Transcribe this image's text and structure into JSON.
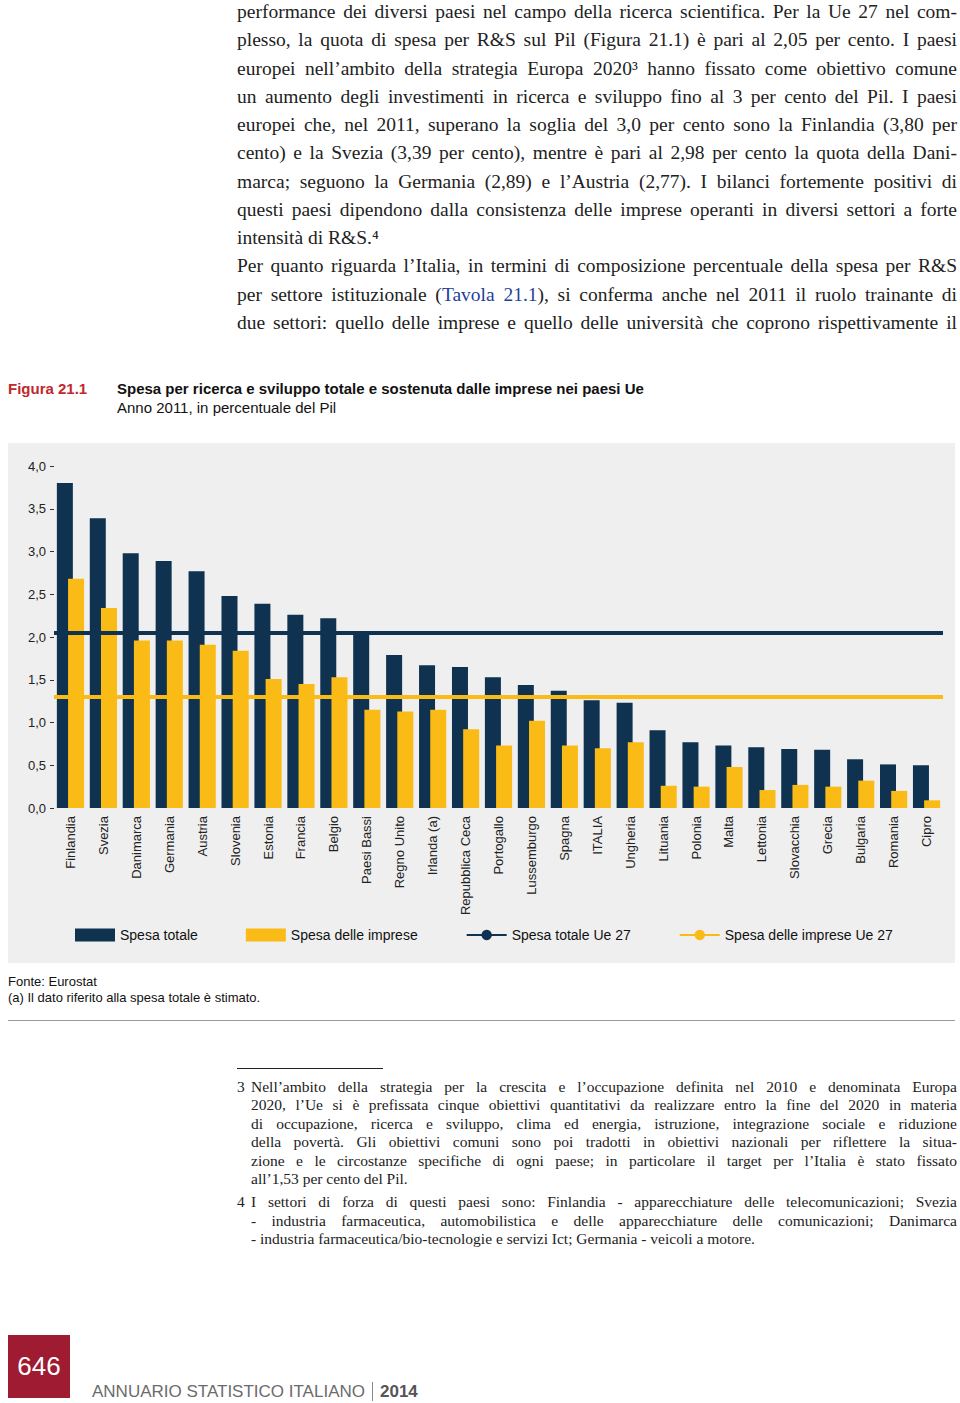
{
  "body": {
    "paragraphs": [
      {
        "lines": [
          "performance dei diversi paesi nel campo della ricerca scientifica. Per la Ue 27 nel com-",
          "plesso, la quota di spesa per R&S sul Pil (Figura 21.1) è pari al 2,05 per cento. I paesi",
          "europei nell’ambito della strategia Europa 2020³ hanno fissato come obiettivo comune",
          "un aumento degli investimenti in ricerca e sviluppo fino al 3 per cento del Pil. I paesi",
          "europei che, nel 2011, superano la soglia del 3,0 per cento sono la Finlandia (3,80 per",
          "cento) e la Svezia (3,39 per cento), mentre è pari al 2,98 per cento la quota della Dani-",
          "marca; seguono la Germania (2,89) e l’Austria (2,77). I bilanci fortemente positivi di",
          "questi paesi dipendono dalla consistenza delle imprese operanti in diversi settori a forte",
          "intensità di R&S.⁴"
        ],
        "continues": false
      },
      {
        "lines": [
          "Per quanto riguarda l’Italia, in termini di composizione percentuale della spesa per R&S",
          [
            {
              "text": "per settore istituzionale ("
            },
            {
              "text": "Tavola 21.1",
              "link": true
            },
            {
              "text": "), si conferma anche nel 2011 il ruolo trainante di"
            }
          ],
          "due settori: quello delle imprese e quello delle università che coprono rispettivamente il"
        ],
        "continues": true
      }
    ]
  },
  "chart_data": {
    "type": "bar",
    "figure_label": "Figura 21.1",
    "title": "Spesa per ricerca e sviluppo totale e sostenuta dalle imprese nei paesi Ue",
    "subtitle": "Anno 2011, in percentuale del Pil",
    "categories": [
      "Finlandia",
      "Svezia",
      "Danimarca",
      "Germania",
      "Austria",
      "Slovenia",
      "Estonia",
      "Francia",
      "Belgio",
      "Paesi Bassi",
      "Regno Unito",
      "Irlanda (a)",
      "Repubblica Ceca",
      "Portogallo",
      "Lussemburgo",
      "Spagna",
      "ITALIA",
      "Ungheria",
      "Lituania",
      "Polonia",
      "Malta",
      "Lettonia",
      "Slovacchia",
      "Grecia",
      "Bulgaria",
      "Romania",
      "Cipro"
    ],
    "series": [
      {
        "name": "Spesa totale",
        "color": "#0e324f",
        "values": [
          3.8,
          3.39,
          2.98,
          2.89,
          2.77,
          2.48,
          2.39,
          2.26,
          2.22,
          2.04,
          1.79,
          1.67,
          1.65,
          1.53,
          1.44,
          1.37,
          1.26,
          1.23,
          0.91,
          0.77,
          0.73,
          0.71,
          0.69,
          0.68,
          0.57,
          0.51,
          0.5
        ]
      },
      {
        "name": "Spesa delle imprese",
        "color": "#fbbb17",
        "values": [
          2.68,
          2.34,
          1.96,
          1.96,
          1.91,
          1.84,
          1.51,
          1.45,
          1.53,
          1.15,
          1.13,
          1.15,
          0.92,
          0.73,
          1.02,
          0.73,
          0.7,
          0.77,
          0.26,
          0.25,
          0.48,
          0.21,
          0.27,
          0.25,
          0.32,
          0.2,
          0.09
        ]
      },
      {
        "name": "Spesa totale Ue 27",
        "type": "hline",
        "color": "#0e324f",
        "value": 2.05
      },
      {
        "name": "Spesa delle imprese Ue 27",
        "type": "hline",
        "color": "#fbbb17",
        "value": 1.3
      }
    ],
    "ylim": [
      0,
      4
    ],
    "yticks": [
      {
        "value": 0,
        "label": "0,0"
      },
      {
        "value": 0.5,
        "label": "0,5"
      },
      {
        "value": 1,
        "label": "1,0"
      },
      {
        "value": 1.5,
        "label": "1,5"
      },
      {
        "value": 2,
        "label": "2,0"
      },
      {
        "value": 2.5,
        "label": "2,5"
      },
      {
        "value": 3,
        "label": "3,0"
      },
      {
        "value": 3.5,
        "label": "3,5"
      },
      {
        "value": 4,
        "label": "4,0"
      }
    ],
    "grid": false,
    "legend": "bottom",
    "source": "Fonte: Eurostat",
    "note": "(a) Il dato riferito alla spesa totale è stimato."
  },
  "footnotes": [
    {
      "mark": "3",
      "lines": [
        "Nell’ambito della strategia per la crescita e l’occupazione definita nel 2010 e denominata Europa",
        "2020, l’Ue si è prefissata cinque obiettivi quantitativi da realizzare entro la fine del 2020 in materia",
        "di occupazione, ricerca e sviluppo, clima ed energia, istruzione, integrazione sociale e riduzione",
        "della povertà. Gli obiettivi comuni sono poi tradotti in obiettivi nazionali per riflettere la situa-",
        "zione e le circostanze specifiche di ogni paese; in particolare il target per l’Italia è stato fissato",
        "all’1,53 per cento del Pil."
      ]
    },
    {
      "mark": "4",
      "lines": [
        "I settori di forza di questi paesi sono: Finlandia - apparecchiature delle telecomunicazioni; Svezia",
        "- industria farmaceutica, automobilistica e delle apparecchiature delle comunicazioni; Danimarca",
        "- industria farmaceutica/bio-tecnologie e servizi Ict; Germania - veicoli a motore."
      ]
    }
  ],
  "page": {
    "number": "646",
    "running_title": "ANNUARIO STATISTICO ITALIANO",
    "year": "2014"
  }
}
